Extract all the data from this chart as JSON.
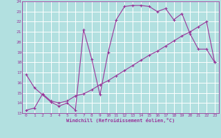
{
  "xlabel": "Windchill (Refroidissement éolien,°C)",
  "background_color": "#b2e0e0",
  "grid_color": "#ffffff",
  "line_color": "#993399",
  "xlim": [
    -0.5,
    23.5
  ],
  "ylim": [
    13,
    24
  ],
  "yticks": [
    13,
    14,
    15,
    16,
    17,
    18,
    19,
    20,
    21,
    22,
    23,
    24
  ],
  "xticks": [
    0,
    1,
    2,
    3,
    4,
    5,
    6,
    7,
    8,
    9,
    10,
    11,
    12,
    13,
    14,
    15,
    16,
    17,
    18,
    19,
    20,
    21,
    22,
    23
  ],
  "line1_x": [
    0,
    1,
    2,
    3,
    4,
    5,
    6,
    7,
    8,
    9,
    10,
    11,
    12,
    13,
    14,
    15,
    16,
    17,
    18,
    19,
    20,
    21,
    22,
    23
  ],
  "line1_y": [
    16.8,
    15.5,
    14.8,
    14.1,
    13.7,
    14.0,
    13.3,
    21.2,
    18.3,
    14.8,
    19.0,
    22.2,
    23.5,
    23.6,
    23.6,
    23.5,
    23.0,
    23.3,
    22.2,
    22.8,
    20.8,
    19.3,
    19.3,
    18.0
  ],
  "line2_x": [
    0,
    1,
    2,
    3,
    4,
    5,
    6,
    7,
    8,
    9,
    10,
    11,
    12,
    13,
    14,
    15,
    16,
    17,
    18,
    19,
    20,
    21,
    22,
    23
  ],
  "line2_y": [
    13.3,
    13.5,
    14.9,
    14.2,
    14.0,
    14.2,
    14.7,
    14.9,
    15.3,
    15.8,
    16.2,
    16.7,
    17.2,
    17.7,
    18.2,
    18.7,
    19.1,
    19.6,
    20.1,
    20.6,
    21.0,
    21.5,
    22.0,
    18.0
  ],
  "marker": "+"
}
